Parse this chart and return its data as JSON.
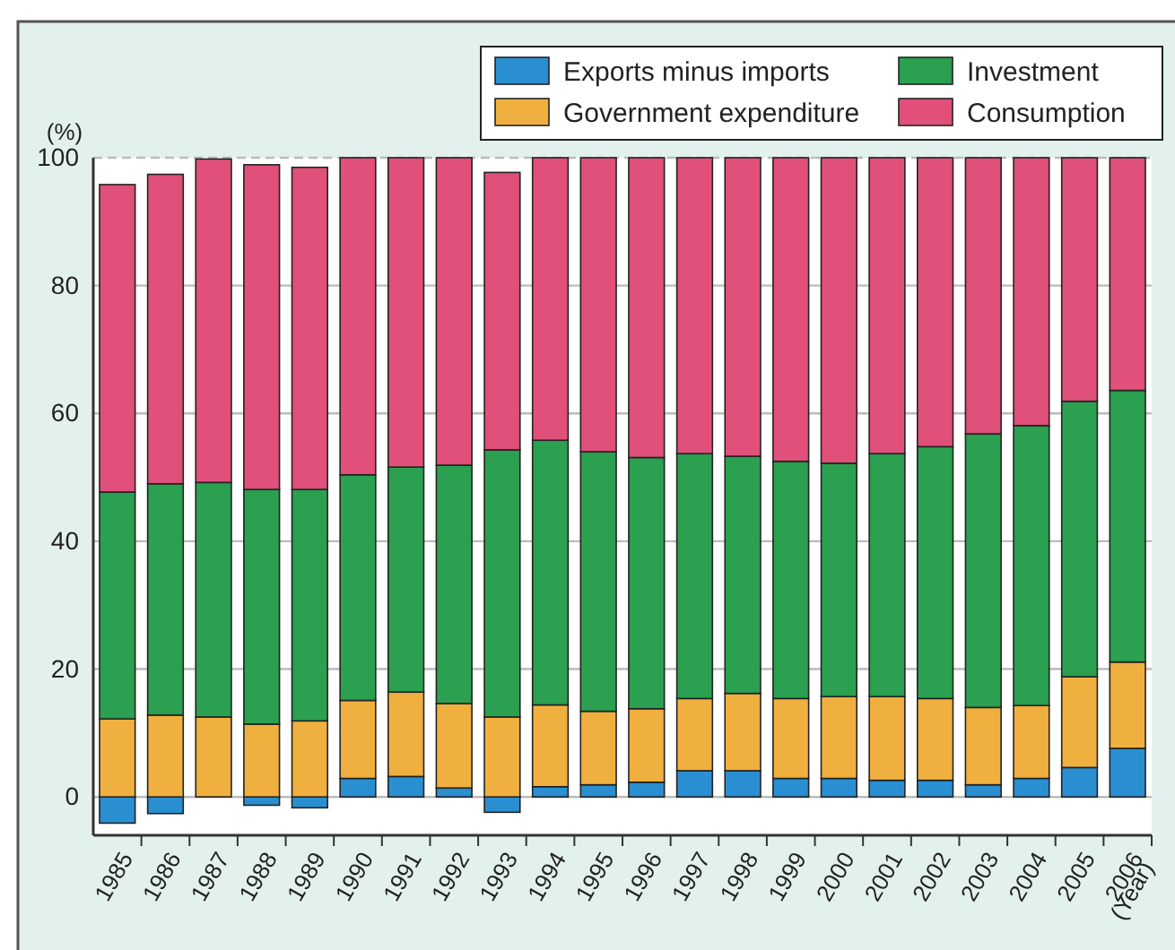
{
  "chart_data": {
    "type": "bar",
    "stacked": true,
    "ylabel": "(%)",
    "xlabel": "(Year)",
    "categories": [
      "1985",
      "1986",
      "1987",
      "1988",
      "1989",
      "1990",
      "1991",
      "1992",
      "1993",
      "1994",
      "1995",
      "1996",
      "1997",
      "1998",
      "1999",
      "2000",
      "2001",
      "2002",
      "2003",
      "2004",
      "2005",
      "2006"
    ],
    "series": [
      {
        "name": "Exports minus imports",
        "color": "#2a8fd0",
        "values": [
          -4.1,
          -2.6,
          0,
          -1.3,
          -1.7,
          2.9,
          3.2,
          1.4,
          -2.4,
          1.6,
          1.9,
          2.3,
          4.1,
          4.1,
          2.9,
          2.9,
          2.6,
          2.6,
          1.9,
          2.9,
          4.6,
          7.6
        ]
      },
      {
        "name": "Government expenditure",
        "color": "#f0b040",
        "values": [
          12.2,
          12.8,
          12.5,
          11.4,
          11.9,
          12.2,
          13.2,
          13.2,
          12.5,
          12.8,
          11.5,
          11.5,
          11.3,
          12.1,
          12.5,
          12.8,
          13.1,
          12.8,
          12.1,
          11.4,
          14.2,
          13.5
        ]
      },
      {
        "name": "Investment",
        "color": "#2aa050",
        "values": [
          35.5,
          36.2,
          36.7,
          36.7,
          36.2,
          35.3,
          35.2,
          37.3,
          41.8,
          41.4,
          40.6,
          39.3,
          38.3,
          37.1,
          37.1,
          36.5,
          38.0,
          39.4,
          42.8,
          43.8,
          43.1,
          42.5
        ]
      },
      {
        "name": "Consumption",
        "color": "#e0507a",
        "values": [
          48.1,
          48.4,
          50.6,
          50.8,
          50.4,
          49.6,
          48.4,
          48.1,
          43.4,
          44.2,
          46.0,
          46.9,
          46.3,
          46.7,
          47.5,
          47.8,
          46.3,
          45.2,
          43.2,
          41.9,
          38.1,
          36.4
        ]
      }
    ],
    "ylim": [
      -6,
      100
    ],
    "yticks": [
      0,
      20,
      40,
      60,
      80,
      100
    ],
    "grid": "y",
    "legend": "top right"
  }
}
